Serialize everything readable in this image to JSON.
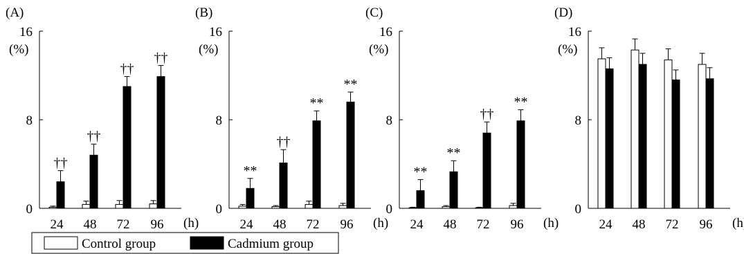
{
  "chart_data": [
    {
      "type": "bar",
      "panel_label": "(A)",
      "y_unit": "(%)",
      "x_unit": "(h)",
      "categories": [
        "24",
        "48",
        "72",
        "96"
      ],
      "ylim": [
        0,
        16
      ],
      "yticks": [
        "0",
        "8",
        "16"
      ],
      "series": [
        {
          "name": "Control group",
          "values": [
            0.1,
            0.35,
            0.35,
            0.4
          ],
          "errors": [
            0.1,
            0.3,
            0.35,
            0.3
          ]
        },
        {
          "name": "Cadmium group",
          "values": [
            2.4,
            4.8,
            11.0,
            11.9
          ],
          "errors": [
            1.0,
            1.0,
            0.9,
            1.0
          ]
        }
      ],
      "significance": [
        "††",
        "††",
        "††",
        "††"
      ]
    },
    {
      "type": "bar",
      "panel_label": "(B)",
      "y_unit": "(%)",
      "x_unit": "(h)",
      "categories": [
        "24",
        "48",
        "72",
        "96"
      ],
      "ylim": [
        0,
        16
      ],
      "yticks": [
        "0",
        "8",
        "16"
      ],
      "series": [
        {
          "name": "Control group",
          "values": [
            0.2,
            0.15,
            0.35,
            0.25
          ],
          "errors": [
            0.15,
            0.1,
            0.3,
            0.2
          ]
        },
        {
          "name": "Cadmium group",
          "values": [
            1.8,
            4.1,
            7.9,
            9.6
          ],
          "errors": [
            0.9,
            1.2,
            0.9,
            0.9
          ]
        }
      ],
      "significance": [
        "**",
        "††",
        "**",
        "**"
      ]
    },
    {
      "type": "bar",
      "panel_label": "(C)",
      "y_unit": "(%)",
      "x_unit": "(h)",
      "categories": [
        "24",
        "48",
        "72",
        "96"
      ],
      "ylim": [
        0,
        16
      ],
      "yticks": [
        "0",
        "8",
        "16"
      ],
      "series": [
        {
          "name": "Control group",
          "values": [
            0.05,
            0.15,
            0.05,
            0.25
          ],
          "errors": [
            0.05,
            0.1,
            0.05,
            0.2
          ]
        },
        {
          "name": "Cadmium group",
          "values": [
            1.6,
            3.3,
            6.8,
            7.9
          ],
          "errors": [
            1.0,
            1.0,
            1.0,
            1.0
          ]
        }
      ],
      "significance": [
        "**",
        "**",
        "††",
        "**"
      ]
    },
    {
      "type": "bar",
      "panel_label": "(D)",
      "y_unit": "(%)",
      "x_unit": "(h)",
      "categories": [
        "24",
        "48",
        "72",
        "96"
      ],
      "ylim": [
        0,
        16
      ],
      "yticks": [
        "0",
        "8",
        "16"
      ],
      "series": [
        {
          "name": "Control group",
          "values": [
            13.5,
            14.3,
            13.4,
            13.0
          ],
          "errors": [
            1.0,
            1.0,
            1.0,
            1.0
          ]
        },
        {
          "name": "Cadmium group",
          "values": [
            12.6,
            13.0,
            11.6,
            11.7
          ],
          "errors": [
            1.0,
            1.0,
            0.9,
            1.0
          ]
        }
      ],
      "significance": [
        "",
        "",
        "",
        ""
      ]
    }
  ],
  "legend": {
    "items": [
      {
        "label": "Control group",
        "color": "#ffffff"
      },
      {
        "label": "Cadmium group",
        "color": "#000000"
      }
    ]
  }
}
